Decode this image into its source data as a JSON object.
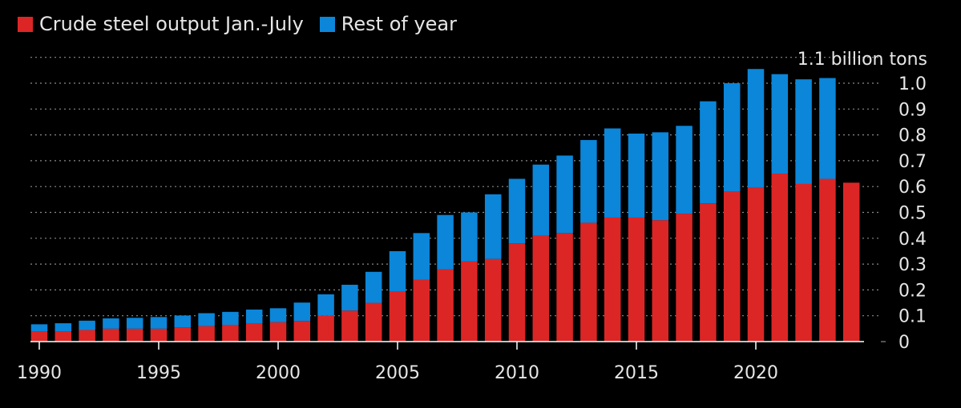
{
  "legend": {
    "series_a_label": "Crude steel output Jan.-July",
    "series_b_label": "Rest of year"
  },
  "colors": {
    "background": "#000000",
    "series_a": "#dc2626",
    "series_b": "#0b86d9",
    "grid": "#8a8a8a",
    "text": "#e6e6e6"
  },
  "chart_data": {
    "type": "bar",
    "stacked": true,
    "unit_label": "1.1 billion tons",
    "x": [
      1990,
      1991,
      1992,
      1993,
      1994,
      1995,
      1996,
      1997,
      1998,
      1999,
      2000,
      2001,
      2002,
      2003,
      2004,
      2005,
      2006,
      2007,
      2008,
      2009,
      2010,
      2011,
      2012,
      2013,
      2014,
      2015,
      2016,
      2017,
      2018,
      2019,
      2020,
      2021,
      2022,
      2023,
      2024
    ],
    "series": [
      {
        "name": "Crude steel output Jan.-July",
        "values": [
          0.04,
          0.04,
          0.045,
          0.05,
          0.05,
          0.05,
          0.055,
          0.06,
          0.065,
          0.07,
          0.075,
          0.08,
          0.1,
          0.12,
          0.15,
          0.195,
          0.24,
          0.28,
          0.31,
          0.32,
          0.38,
          0.41,
          0.42,
          0.46,
          0.48,
          0.48,
          0.47,
          0.495,
          0.535,
          0.58,
          0.595,
          0.65,
          0.61,
          0.63,
          0.615
        ]
      },
      {
        "name": "Rest of year",
        "values": [
          0.027,
          0.031,
          0.036,
          0.04,
          0.042,
          0.045,
          0.046,
          0.05,
          0.05,
          0.054,
          0.054,
          0.071,
          0.083,
          0.1,
          0.12,
          0.155,
          0.18,
          0.21,
          0.19,
          0.25,
          0.25,
          0.275,
          0.3,
          0.32,
          0.345,
          0.325,
          0.34,
          0.34,
          0.395,
          0.42,
          0.46,
          0.385,
          0.405,
          0.39,
          null
        ]
      }
    ],
    "x_tick_labels": [
      "1990",
      "1995",
      "2000",
      "2005",
      "2010",
      "2015",
      "2020"
    ],
    "y_tick_labels": [
      "0",
      "0.1",
      "0.2",
      "0.3",
      "0.4",
      "0.5",
      "0.6",
      "0.7",
      "0.8",
      "0.9",
      "1.0"
    ],
    "ylim": [
      0,
      1.1
    ],
    "y_axis_side": "right",
    "grid": true,
    "legend_position": "top-left"
  }
}
